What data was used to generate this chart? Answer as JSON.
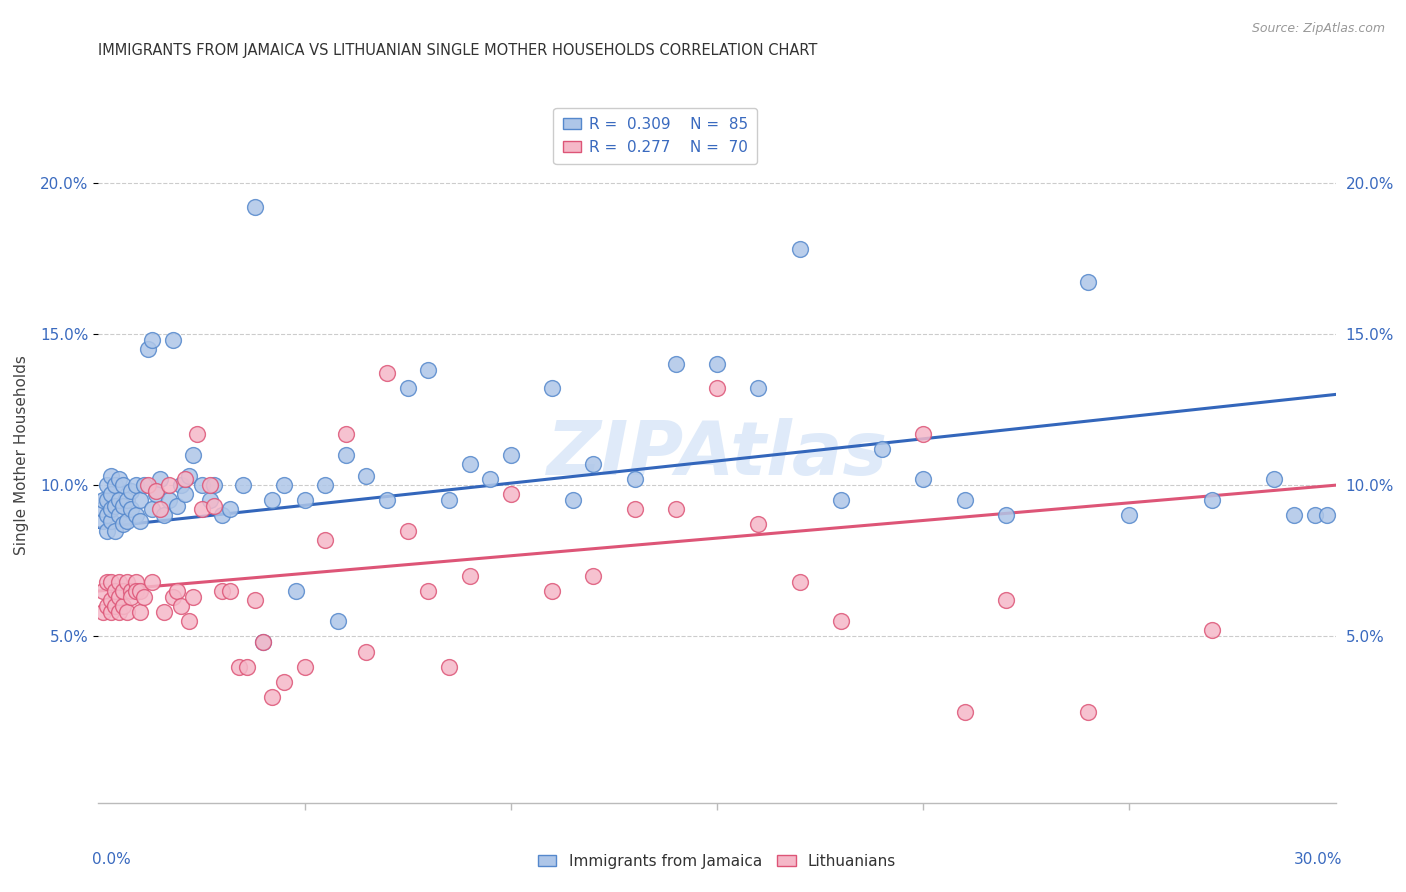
{
  "title": "IMMIGRANTS FROM JAMAICA VS LITHUANIAN SINGLE MOTHER HOUSEHOLDS CORRELATION CHART",
  "source": "Source: ZipAtlas.com",
  "ylabel": "Single Mother Households",
  "xlim": [
    0,
    0.3
  ],
  "ylim": [
    -0.005,
    0.225
  ],
  "yticks": [
    0.05,
    0.1,
    0.15,
    0.2
  ],
  "ytick_labels": [
    "5.0%",
    "10.0%",
    "15.0%",
    "20.0%"
  ],
  "series1_label": "Immigrants from Jamaica",
  "series1_R": "0.309",
  "series1_N": "85",
  "series1_color": "#aec6e8",
  "series1_edge": "#5588cc",
  "series1_line_color": "#3366bb",
  "series2_label": "Lithuanians",
  "series2_R": "0.277",
  "series2_N": "70",
  "series2_color": "#f5b8c8",
  "series2_edge": "#dd5577",
  "series2_line_color": "#dd5577",
  "watermark": "ZIPAtlas",
  "background_color": "#ffffff",
  "grid_color": "#cccccc",
  "series1_x": [
    0.001,
    0.001,
    0.001,
    0.002,
    0.002,
    0.002,
    0.002,
    0.003,
    0.003,
    0.003,
    0.003,
    0.004,
    0.004,
    0.004,
    0.005,
    0.005,
    0.005,
    0.006,
    0.006,
    0.006,
    0.007,
    0.007,
    0.008,
    0.008,
    0.009,
    0.009,
    0.01,
    0.01,
    0.011,
    0.012,
    0.013,
    0.013,
    0.014,
    0.015,
    0.016,
    0.017,
    0.018,
    0.019,
    0.02,
    0.021,
    0.022,
    0.023,
    0.025,
    0.027,
    0.028,
    0.03,
    0.032,
    0.035,
    0.038,
    0.04,
    0.042,
    0.045,
    0.048,
    0.05,
    0.055,
    0.058,
    0.06,
    0.065,
    0.07,
    0.075,
    0.08,
    0.085,
    0.09,
    0.095,
    0.1,
    0.11,
    0.115,
    0.12,
    0.13,
    0.14,
    0.15,
    0.16,
    0.17,
    0.18,
    0.19,
    0.2,
    0.21,
    0.22,
    0.24,
    0.25,
    0.27,
    0.285,
    0.29,
    0.295,
    0.298
  ],
  "series1_y": [
    0.088,
    0.092,
    0.095,
    0.085,
    0.09,
    0.095,
    0.1,
    0.088,
    0.092,
    0.097,
    0.103,
    0.085,
    0.093,
    0.1,
    0.09,
    0.095,
    0.102,
    0.087,
    0.093,
    0.1,
    0.088,
    0.095,
    0.092,
    0.098,
    0.09,
    0.1,
    0.088,
    0.095,
    0.1,
    0.145,
    0.148,
    0.092,
    0.097,
    0.102,
    0.09,
    0.095,
    0.148,
    0.093,
    0.1,
    0.097,
    0.103,
    0.11,
    0.1,
    0.095,
    0.1,
    0.09,
    0.092,
    0.1,
    0.192,
    0.048,
    0.095,
    0.1,
    0.065,
    0.095,
    0.1,
    0.055,
    0.11,
    0.103,
    0.095,
    0.132,
    0.138,
    0.095,
    0.107,
    0.102,
    0.11,
    0.132,
    0.095,
    0.107,
    0.102,
    0.14,
    0.14,
    0.132,
    0.178,
    0.095,
    0.112,
    0.102,
    0.095,
    0.09,
    0.167,
    0.09,
    0.095,
    0.102,
    0.09,
    0.09,
    0.09
  ],
  "series2_x": [
    0.001,
    0.001,
    0.002,
    0.002,
    0.003,
    0.003,
    0.003,
    0.004,
    0.004,
    0.005,
    0.005,
    0.005,
    0.006,
    0.006,
    0.007,
    0.007,
    0.008,
    0.008,
    0.009,
    0.009,
    0.01,
    0.01,
    0.011,
    0.012,
    0.013,
    0.014,
    0.015,
    0.016,
    0.017,
    0.018,
    0.019,
    0.02,
    0.021,
    0.022,
    0.023,
    0.024,
    0.025,
    0.027,
    0.028,
    0.03,
    0.032,
    0.034,
    0.036,
    0.038,
    0.04,
    0.042,
    0.045,
    0.05,
    0.055,
    0.06,
    0.065,
    0.07,
    0.075,
    0.08,
    0.085,
    0.09,
    0.1,
    0.11,
    0.12,
    0.13,
    0.14,
    0.15,
    0.16,
    0.17,
    0.18,
    0.2,
    0.21,
    0.22,
    0.24,
    0.27
  ],
  "series2_y": [
    0.058,
    0.065,
    0.06,
    0.068,
    0.058,
    0.062,
    0.068,
    0.06,
    0.065,
    0.058,
    0.063,
    0.068,
    0.06,
    0.065,
    0.058,
    0.068,
    0.065,
    0.063,
    0.068,
    0.065,
    0.058,
    0.065,
    0.063,
    0.1,
    0.068,
    0.098,
    0.092,
    0.058,
    0.1,
    0.063,
    0.065,
    0.06,
    0.102,
    0.055,
    0.063,
    0.117,
    0.092,
    0.1,
    0.093,
    0.065,
    0.065,
    0.04,
    0.04,
    0.062,
    0.048,
    0.03,
    0.035,
    0.04,
    0.082,
    0.117,
    0.045,
    0.137,
    0.085,
    0.065,
    0.04,
    0.07,
    0.097,
    0.065,
    0.07,
    0.092,
    0.092,
    0.132,
    0.087,
    0.068,
    0.055,
    0.117,
    0.025,
    0.062,
    0.025,
    0.052
  ],
  "trend1_x0": 0.0,
  "trend1_x1": 0.3,
  "trend1_y0": 0.086,
  "trend1_y1": 0.13,
  "trend2_x0": 0.0,
  "trend2_x1": 0.3,
  "trend2_y0": 0.065,
  "trend2_y1": 0.1
}
